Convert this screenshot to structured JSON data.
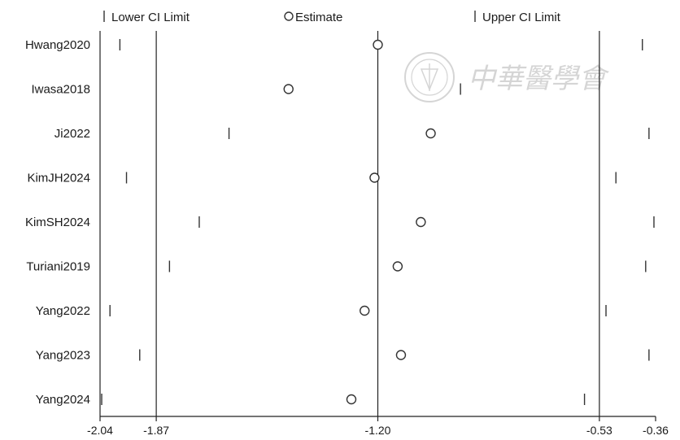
{
  "chart_data": {
    "type": "forest",
    "legend": {
      "lower": "Lower CI Limit",
      "estimate": "Estimate",
      "upper": "Upper CI Limit",
      "position": "top"
    },
    "studies": [
      {
        "name": "Hwang2020",
        "lower": -1.98,
        "estimate": -1.2,
        "upper": -0.4
      },
      {
        "name": "Iwasa2018",
        "lower": null,
        "estimate": -1.47,
        "upper": -0.95
      },
      {
        "name": "Ji2022",
        "lower": -1.65,
        "estimate": -1.04,
        "upper": -0.38
      },
      {
        "name": "KimJH2024",
        "lower": -1.96,
        "estimate": -1.21,
        "upper": -0.48
      },
      {
        "name": "KimSH2024",
        "lower": -1.74,
        "estimate": -1.07,
        "upper": -0.365
      },
      {
        "name": "Turiani2019",
        "lower": -1.83,
        "estimate": -1.14,
        "upper": -0.39
      },
      {
        "name": "Yang2022",
        "lower": -2.01,
        "estimate": -1.24,
        "upper": -0.51
      },
      {
        "name": "Yang2023",
        "lower": -1.92,
        "estimate": -1.13,
        "upper": -0.38
      },
      {
        "name": "Yang2024",
        "lower": -2.035,
        "estimate": -1.28,
        "upper": -0.575
      }
    ],
    "xlim": [
      -2.04,
      -0.36
    ],
    "xticks": [
      -2.04,
      -1.87,
      -1.2,
      -0.53,
      -0.36
    ],
    "xtick_labels": [
      "-2.04",
      "-1.87",
      "-1.20",
      "-0.53",
      "-0.36"
    ],
    "reference_lines": [
      -1.87,
      -1.2,
      -0.53
    ],
    "grid": false
  },
  "watermark": {
    "text": "中華醫學會"
  }
}
